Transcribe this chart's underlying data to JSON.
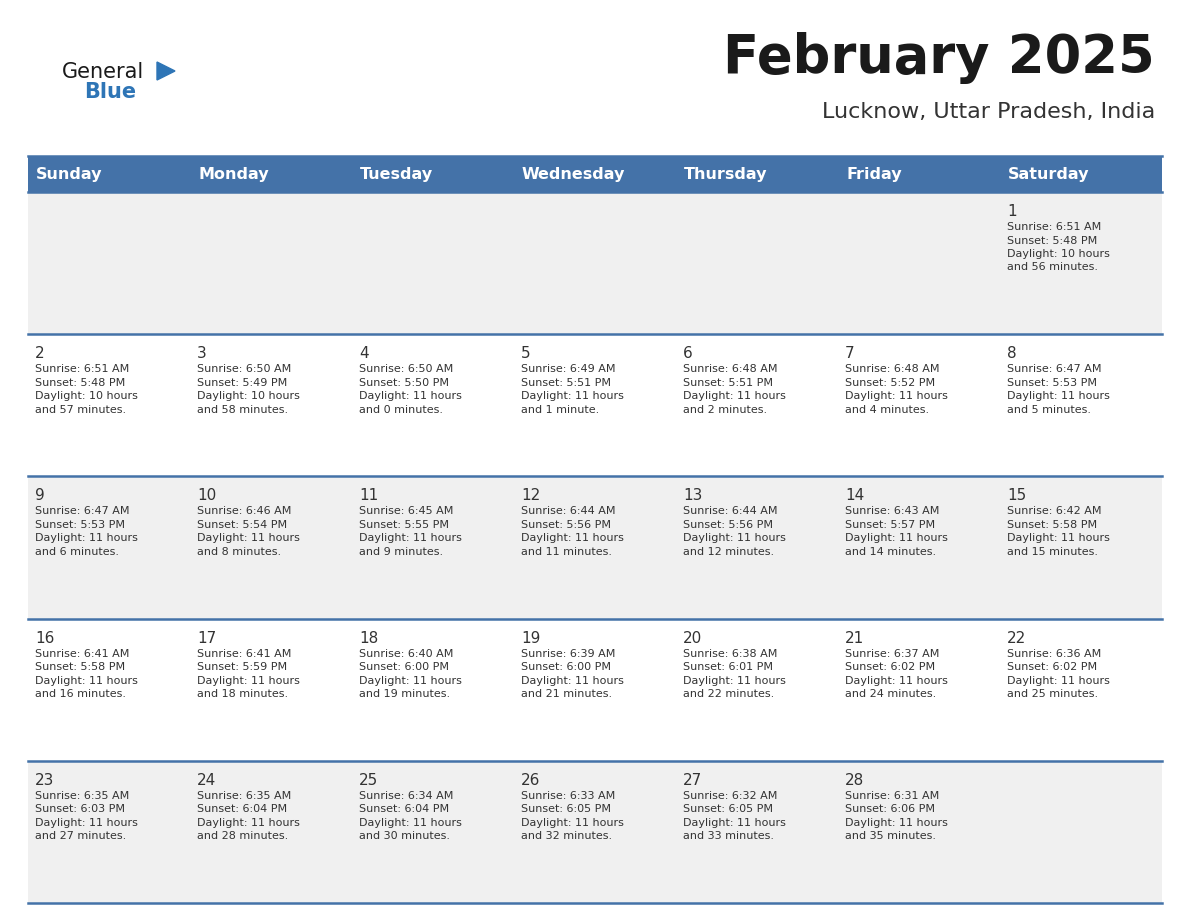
{
  "title": "February 2025",
  "subtitle": "Lucknow, Uttar Pradesh, India",
  "header_bg": "#4472a8",
  "header_text_color": "#ffffff",
  "row_bg_light": "#f0f0f0",
  "row_bg_white": "#ffffff",
  "separator_color": "#4472a8",
  "separator_thin_color": "#c0c8d8",
  "days_of_week": [
    "Sunday",
    "Monday",
    "Tuesday",
    "Wednesday",
    "Thursday",
    "Friday",
    "Saturday"
  ],
  "title_color": "#1a1a1a",
  "subtitle_color": "#333333",
  "cell_text_color": "#333333",
  "day_number_color": "#333333",
  "logo_general_color": "#1a1a1a",
  "logo_blue_color": "#2e75b6",
  "logo_triangle_color": "#2e75b6",
  "calendar": [
    [
      null,
      null,
      null,
      null,
      null,
      null,
      {
        "day": 1,
        "sunrise": "6:51 AM",
        "sunset": "5:48 PM",
        "daylight": "10 hours",
        "daylight2": "and 56 minutes."
      }
    ],
    [
      {
        "day": 2,
        "sunrise": "6:51 AM",
        "sunset": "5:48 PM",
        "daylight": "10 hours",
        "daylight2": "and 57 minutes."
      },
      {
        "day": 3,
        "sunrise": "6:50 AM",
        "sunset": "5:49 PM",
        "daylight": "10 hours",
        "daylight2": "and 58 minutes."
      },
      {
        "day": 4,
        "sunrise": "6:50 AM",
        "sunset": "5:50 PM",
        "daylight": "11 hours",
        "daylight2": "and 0 minutes."
      },
      {
        "day": 5,
        "sunrise": "6:49 AM",
        "sunset": "5:51 PM",
        "daylight": "11 hours",
        "daylight2": "and 1 minute."
      },
      {
        "day": 6,
        "sunrise": "6:48 AM",
        "sunset": "5:51 PM",
        "daylight": "11 hours",
        "daylight2": "and 2 minutes."
      },
      {
        "day": 7,
        "sunrise": "6:48 AM",
        "sunset": "5:52 PM",
        "daylight": "11 hours",
        "daylight2": "and 4 minutes."
      },
      {
        "day": 8,
        "sunrise": "6:47 AM",
        "sunset": "5:53 PM",
        "daylight": "11 hours",
        "daylight2": "and 5 minutes."
      }
    ],
    [
      {
        "day": 9,
        "sunrise": "6:47 AM",
        "sunset": "5:53 PM",
        "daylight": "11 hours",
        "daylight2": "and 6 minutes."
      },
      {
        "day": 10,
        "sunrise": "6:46 AM",
        "sunset": "5:54 PM",
        "daylight": "11 hours",
        "daylight2": "and 8 minutes."
      },
      {
        "day": 11,
        "sunrise": "6:45 AM",
        "sunset": "5:55 PM",
        "daylight": "11 hours",
        "daylight2": "and 9 minutes."
      },
      {
        "day": 12,
        "sunrise": "6:44 AM",
        "sunset": "5:56 PM",
        "daylight": "11 hours",
        "daylight2": "and 11 minutes."
      },
      {
        "day": 13,
        "sunrise": "6:44 AM",
        "sunset": "5:56 PM",
        "daylight": "11 hours",
        "daylight2": "and 12 minutes."
      },
      {
        "day": 14,
        "sunrise": "6:43 AM",
        "sunset": "5:57 PM",
        "daylight": "11 hours",
        "daylight2": "and 14 minutes."
      },
      {
        "day": 15,
        "sunrise": "6:42 AM",
        "sunset": "5:58 PM",
        "daylight": "11 hours",
        "daylight2": "and 15 minutes."
      }
    ],
    [
      {
        "day": 16,
        "sunrise": "6:41 AM",
        "sunset": "5:58 PM",
        "daylight": "11 hours",
        "daylight2": "and 16 minutes."
      },
      {
        "day": 17,
        "sunrise": "6:41 AM",
        "sunset": "5:59 PM",
        "daylight": "11 hours",
        "daylight2": "and 18 minutes."
      },
      {
        "day": 18,
        "sunrise": "6:40 AM",
        "sunset": "6:00 PM",
        "daylight": "11 hours",
        "daylight2": "and 19 minutes."
      },
      {
        "day": 19,
        "sunrise": "6:39 AM",
        "sunset": "6:00 PM",
        "daylight": "11 hours",
        "daylight2": "and 21 minutes."
      },
      {
        "day": 20,
        "sunrise": "6:38 AM",
        "sunset": "6:01 PM",
        "daylight": "11 hours",
        "daylight2": "and 22 minutes."
      },
      {
        "day": 21,
        "sunrise": "6:37 AM",
        "sunset": "6:02 PM",
        "daylight": "11 hours",
        "daylight2": "and 24 minutes."
      },
      {
        "day": 22,
        "sunrise": "6:36 AM",
        "sunset": "6:02 PM",
        "daylight": "11 hours",
        "daylight2": "and 25 minutes."
      }
    ],
    [
      {
        "day": 23,
        "sunrise": "6:35 AM",
        "sunset": "6:03 PM",
        "daylight": "11 hours",
        "daylight2": "and 27 minutes."
      },
      {
        "day": 24,
        "sunrise": "6:35 AM",
        "sunset": "6:04 PM",
        "daylight": "11 hours",
        "daylight2": "and 28 minutes."
      },
      {
        "day": 25,
        "sunrise": "6:34 AM",
        "sunset": "6:04 PM",
        "daylight": "11 hours",
        "daylight2": "and 30 minutes."
      },
      {
        "day": 26,
        "sunrise": "6:33 AM",
        "sunset": "6:05 PM",
        "daylight": "11 hours",
        "daylight2": "and 32 minutes."
      },
      {
        "day": 27,
        "sunrise": "6:32 AM",
        "sunset": "6:05 PM",
        "daylight": "11 hours",
        "daylight2": "and 33 minutes."
      },
      {
        "day": 28,
        "sunrise": "6:31 AM",
        "sunset": "6:06 PM",
        "daylight": "11 hours",
        "daylight2": "and 35 minutes."
      },
      null
    ]
  ]
}
